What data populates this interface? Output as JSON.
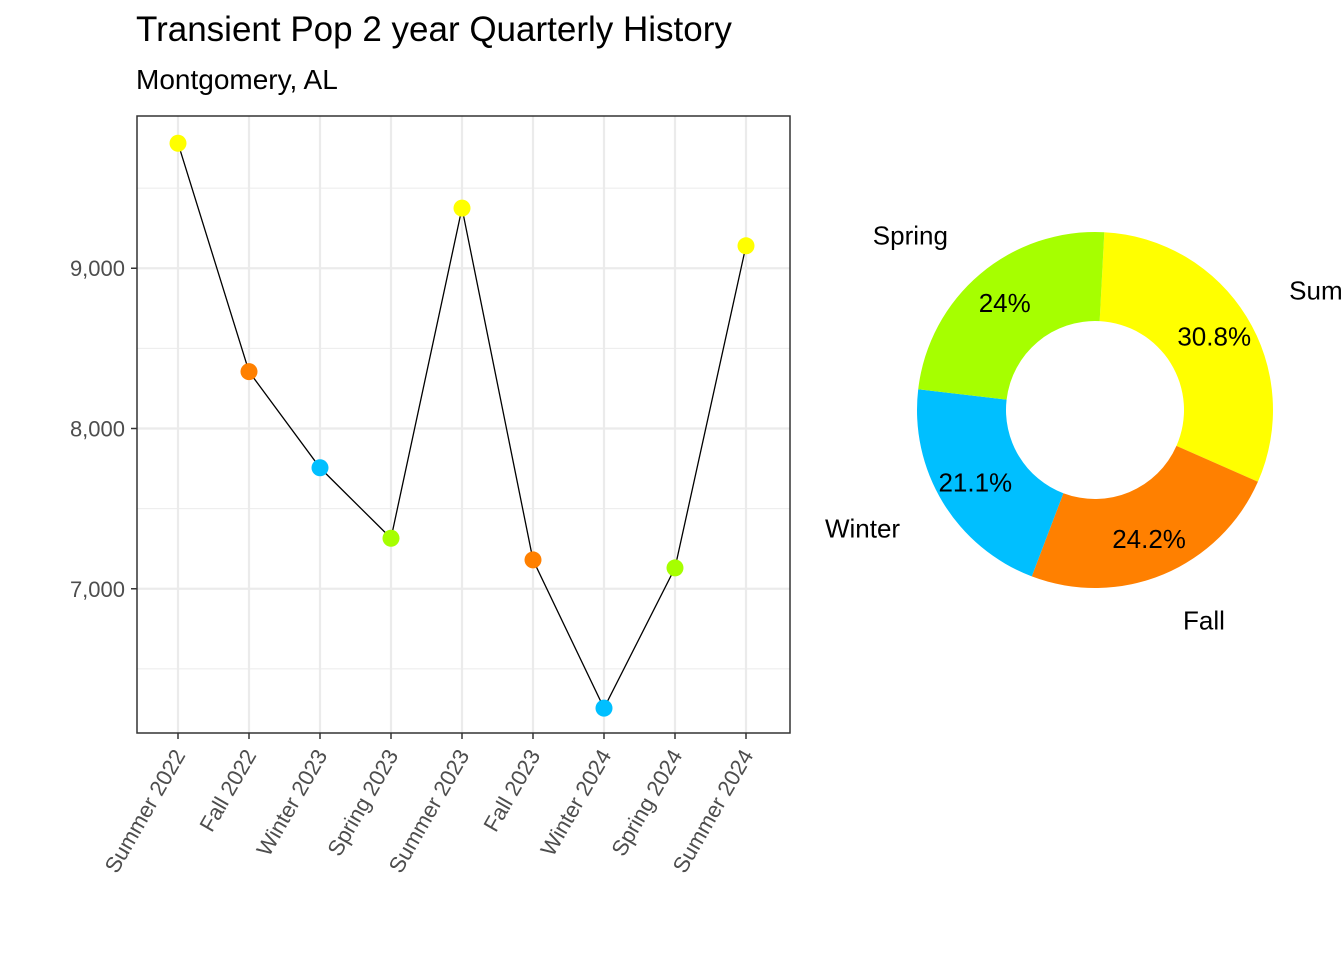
{
  "chart_data": [
    {
      "type": "line",
      "title": "Transient Pop 2 year Quarterly History",
      "subtitle": "Montgomery, AL",
      "xlabel": "",
      "ylabel": "",
      "categories": [
        "Summer 2022",
        "Fall 2022",
        "Winter 2023",
        "Spring 2023",
        "Summer 2023",
        "Fall 2023",
        "Winter 2024",
        "Spring 2024",
        "Summer 2024"
      ],
      "values": [
        9780,
        8355,
        7755,
        7315,
        9375,
        7180,
        6255,
        7130,
        9140
      ],
      "point_seasons": [
        "Summer",
        "Fall",
        "Winter",
        "Spring",
        "Summer",
        "Fall",
        "Winter",
        "Spring",
        "Summer"
      ],
      "yticks": [
        7000,
        8000,
        9000
      ],
      "ytick_labels": [
        "7,000",
        "8,000",
        "9,000"
      ],
      "ylim": [
        6100,
        9950
      ],
      "grid": true,
      "line_color": "#000000"
    },
    {
      "type": "pie",
      "style": "donut",
      "slices": [
        {
          "label": "Summer",
          "pct": 30.8,
          "pct_label": "30.8%",
          "color": "#FFFF00"
        },
        {
          "label": "Fall",
          "pct": 24.2,
          "pct_label": "24.2%",
          "color": "#FF8000"
        },
        {
          "label": "Winter",
          "pct": 21.1,
          "pct_label": "21.1%",
          "color": "#00BFFF"
        },
        {
          "label": "Spring",
          "pct": 24.0,
          "pct_label": "24%",
          "color": "#A6FF00"
        }
      ]
    }
  ],
  "season_colors": {
    "Summer": "#FFFF00",
    "Fall": "#FF8000",
    "Winter": "#00BFFF",
    "Spring": "#A6FF00"
  }
}
